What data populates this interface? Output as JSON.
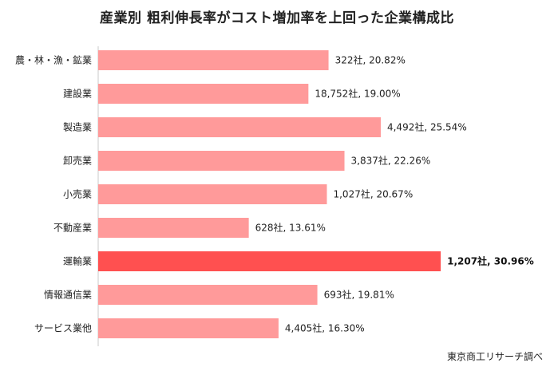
{
  "chart_data": {
    "type": "bar",
    "orientation": "horizontal",
    "title": "産業別 粗利伸長率がコスト増加率を上回った企業構成比",
    "categories": [
      "農・林・漁・鉱業",
      "建設業",
      "製造業",
      "卸売業",
      "小売業",
      "不動産業",
      "運輸業",
      "情報通信業",
      "サービス業他"
    ],
    "values": [
      20.82,
      19.0,
      25.54,
      22.26,
      20.67,
      13.61,
      30.96,
      19.81,
      16.3
    ],
    "data_labels": [
      "322社, 20.82%",
      "18,752社, 19.00%",
      "4,492社, 25.54%",
      "3,837社, 22.26%",
      "1,027社, 20.67%",
      "628社, 13.61%",
      "1,207社, 30.96%",
      "693社, 19.81%",
      "4,405社, 16.30%"
    ],
    "highlight_category": "運輸業",
    "xlim": [
      0,
      35
    ],
    "grid": false,
    "colors": {
      "bar": "#FF9A9A",
      "highlight": "#FF5050",
      "axis": "#C8C8C8"
    }
  },
  "footer": {
    "source": "東京商工リサーチ調べ"
  }
}
